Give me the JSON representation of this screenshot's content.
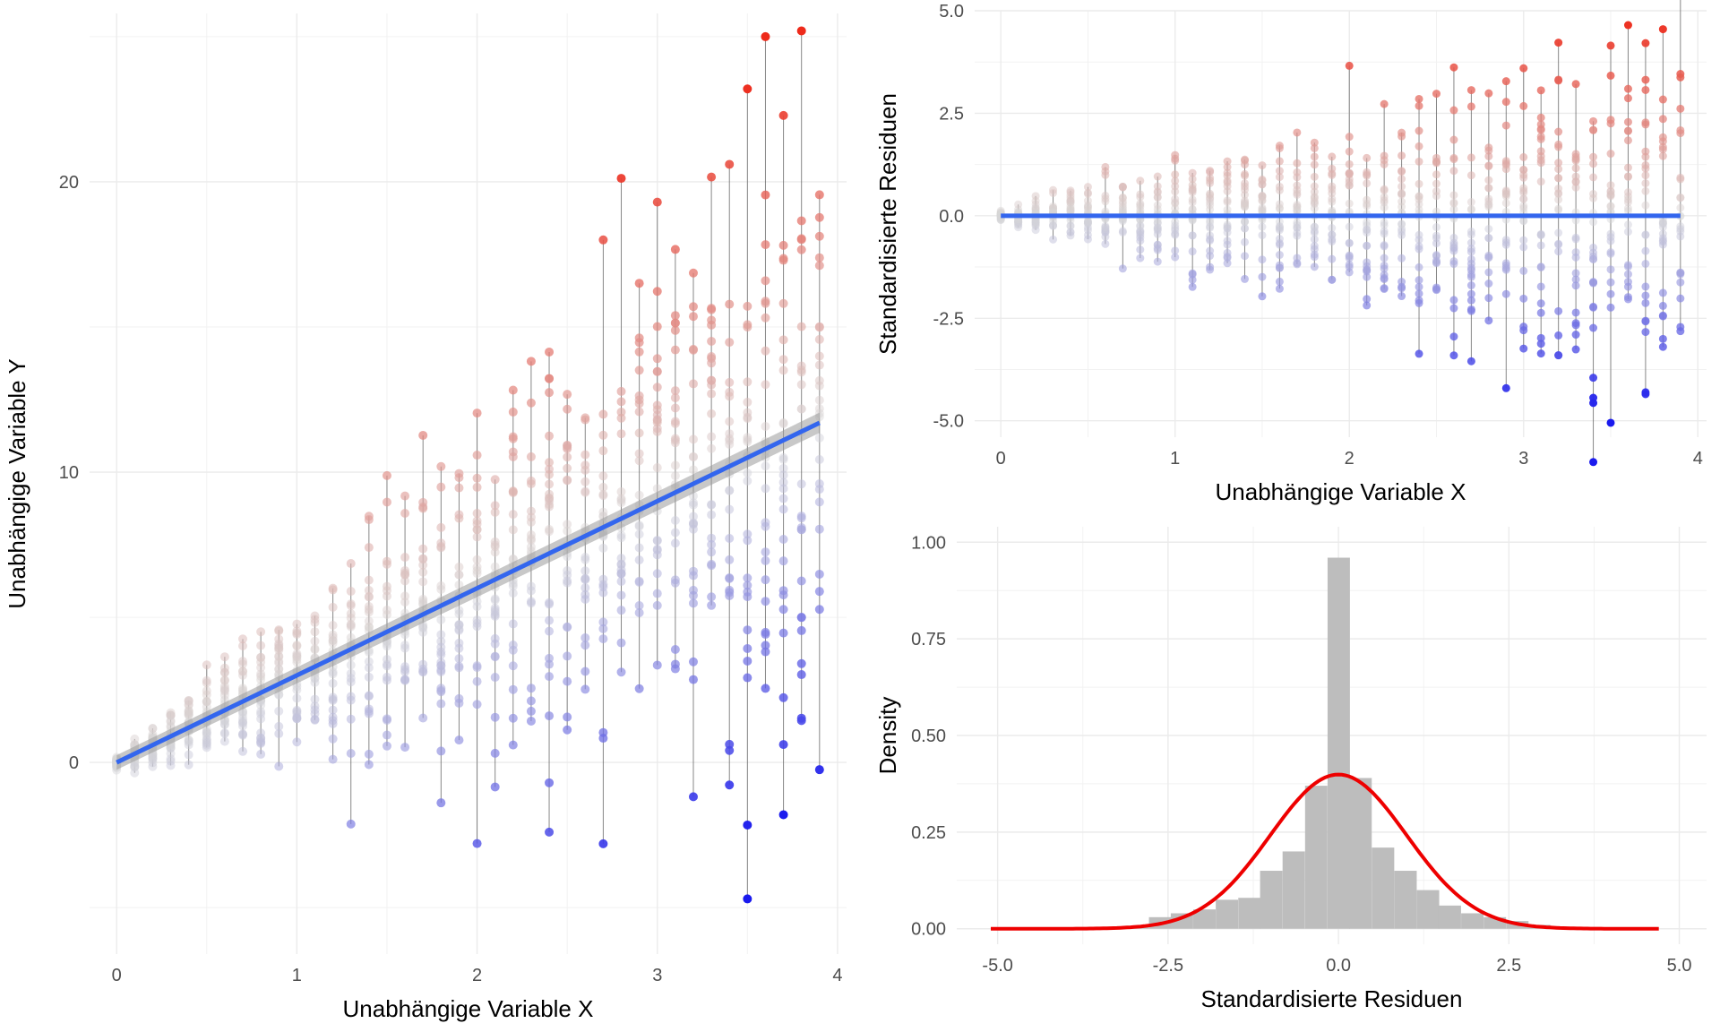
{
  "chart_data": [
    {
      "id": "scatter",
      "type": "scatter",
      "xlabel": "Unabhängige Variable X",
      "ylabel": "Unabhängige Variable Y",
      "xlim": [
        -0.15,
        4.05
      ],
      "ylim": [
        -6.6,
        25.8
      ],
      "x_ticks": [
        0,
        1,
        2,
        3,
        4
      ],
      "y_ticks": [
        0,
        10,
        20
      ],
      "grid": true,
      "fit_line": {
        "intercept": 0.0,
        "slope": 3.0,
        "x_range": [
          0,
          3.9
        ],
        "color": "#3366ee"
      },
      "color_scale": {
        "low": "#1a1aee",
        "mid": "#d8d8d8",
        "high": "#ee2a1a"
      },
      "points_note": "x values from 0 to 3.9 in steps of 0.1; y scatter grows with x",
      "x_step": 0.1,
      "x_max": 3.9,
      "extreme_points": [
        {
          "x": 3.6,
          "y": 25.0
        },
        {
          "x": 3.8,
          "y": 25.2
        },
        {
          "x": 3.5,
          "y": 23.2
        },
        {
          "x": 3.5,
          "y": -4.7
        },
        {
          "x": 3.7,
          "y": -1.8
        },
        {
          "x": 2.7,
          "y": -2.8
        },
        {
          "x": 2.4,
          "y": -2.4
        },
        {
          "x": 3.0,
          "y": 19.3
        },
        {
          "x": 2.7,
          "y": 18.0
        }
      ]
    },
    {
      "id": "residuals",
      "type": "scatter",
      "xlabel": "Unabhängige Variable X",
      "ylabel": "Standardisierte Residuen",
      "xlim": [
        -0.15,
        4.05
      ],
      "ylim": [
        -5.4,
        5.0
      ],
      "x_ticks": [
        0,
        1,
        2,
        3,
        4
      ],
      "y_ticks": [
        -5.0,
        -2.5,
        0.0,
        2.5,
        5.0
      ],
      "y_tick_labels": [
        "-5.0",
        "-2.5",
        "0.0",
        "2.5",
        "5.0"
      ],
      "grid": true,
      "hline": {
        "y": 0,
        "x_range": [
          0,
          3.9
        ],
        "color": "#3366ee"
      },
      "extreme_points": [
        {
          "x": 3.6,
          "y": 4.65
        },
        {
          "x": 3.8,
          "y": 4.55
        },
        {
          "x": 3.5,
          "y": 4.15
        },
        {
          "x": 3.5,
          "y": -5.05
        },
        {
          "x": 3.7,
          "y": -4.35
        },
        {
          "x": 3.4,
          "y": -3.95
        }
      ]
    },
    {
      "id": "histogram",
      "type": "bar",
      "xlabel": "Standardisierte Residuen",
      "ylabel": "Density",
      "xlim": [
        -5.6,
        5.4
      ],
      "ylim": [
        -0.04,
        1.04
      ],
      "x_ticks": [
        -5.0,
        -2.5,
        0.0,
        2.5,
        5.0
      ],
      "x_tick_labels": [
        "-5.0",
        "-2.5",
        "0.0",
        "2.5",
        "5.0"
      ],
      "y_ticks": [
        0.0,
        0.25,
        0.5,
        0.75,
        1.0
      ],
      "y_tick_labels": [
        "0.00",
        "0.25",
        "0.50",
        "0.75",
        "1.00"
      ],
      "grid": true,
      "bin_width": 0.328,
      "bins": [
        {
          "x0": -5.08,
          "density": 0.0
        },
        {
          "x0": -4.75,
          "density": 0.0
        },
        {
          "x0": -4.42,
          "density": 0.0
        },
        {
          "x0": -4.1,
          "density": 0.0
        },
        {
          "x0": -3.77,
          "density": 0.002
        },
        {
          "x0": -3.44,
          "density": 0.002
        },
        {
          "x0": -3.11,
          "density": 0.004
        },
        {
          "x0": -2.78,
          "density": 0.03
        },
        {
          "x0": -2.46,
          "density": 0.04
        },
        {
          "x0": -2.13,
          "density": 0.05
        },
        {
          "x0": -1.8,
          "density": 0.075
        },
        {
          "x0": -1.47,
          "density": 0.08
        },
        {
          "x0": -1.15,
          "density": 0.15
        },
        {
          "x0": -0.82,
          "density": 0.2
        },
        {
          "x0": -0.49,
          "density": 0.37
        },
        {
          "x0": -0.16,
          "density": 0.96
        },
        {
          "x0": 0.16,
          "density": 0.39
        },
        {
          "x0": 0.49,
          "density": 0.21
        },
        {
          "x0": 0.82,
          "density": 0.15
        },
        {
          "x0": 1.15,
          "density": 0.1
        },
        {
          "x0": 1.47,
          "density": 0.06
        },
        {
          "x0": 1.8,
          "density": 0.04
        },
        {
          "x0": 2.13,
          "density": 0.03
        },
        {
          "x0": 2.46,
          "density": 0.02
        },
        {
          "x0": 2.78,
          "density": 0.01
        },
        {
          "x0": 3.11,
          "density": 0.005
        },
        {
          "x0": 3.44,
          "density": 0.0
        },
        {
          "x0": 3.77,
          "density": 0.0
        },
        {
          "x0": 4.1,
          "density": 0.0
        },
        {
          "x0": 4.42,
          "density": 0.0
        }
      ],
      "bar_color": "#bdbdbd",
      "density_curve": {
        "distribution": "normal",
        "mean": 0,
        "sd": 1,
        "x_range": [
          -5.1,
          4.7
        ],
        "color": "#ee0000"
      }
    }
  ]
}
